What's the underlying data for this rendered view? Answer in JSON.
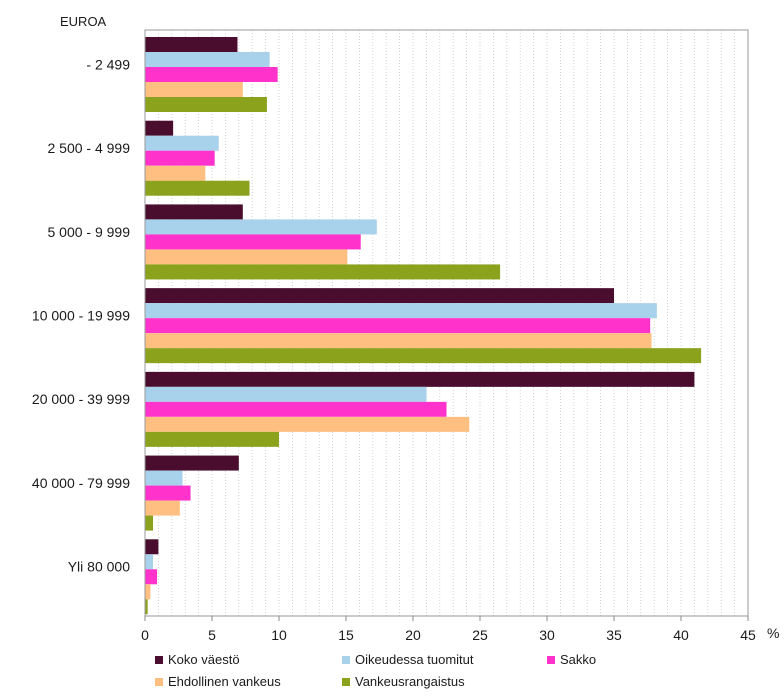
{
  "chart_data": {
    "type": "bar",
    "orientation": "horizontal",
    "title": "",
    "unit_label": "EUROA",
    "axis_unit": "%",
    "categories": [
      "- 2 499",
      "2 500 - 4 999",
      "5 000 - 9 999",
      "10 000 - 19 999",
      "20 000 - 39 999",
      "40 000 - 79 999",
      "Yli 80 000"
    ],
    "series": [
      {
        "name": "Koko väestö",
        "color": "#4a0d2e",
        "values": [
          6.9,
          2.1,
          7.3,
          35.0,
          41.0,
          7.0,
          1.0
        ]
      },
      {
        "name": "Oikeudessa tuomitut",
        "color": "#a8d1ec",
        "values": [
          9.3,
          5.5,
          17.3,
          38.2,
          21.0,
          2.8,
          0.6
        ]
      },
      {
        "name": "Sakko",
        "color": "#ff33cc",
        "values": [
          9.9,
          5.2,
          16.1,
          37.7,
          22.5,
          3.4,
          0.9
        ]
      },
      {
        "name": "Ehdollinen vankeus",
        "color": "#ffbf80",
        "values": [
          7.3,
          4.5,
          15.1,
          37.8,
          24.2,
          2.6,
          0.4
        ]
      },
      {
        "name": "Vankeusrangaistus",
        "color": "#8aa21c",
        "values": [
          9.1,
          7.8,
          26.5,
          41.5,
          10.0,
          0.6,
          0.2
        ]
      }
    ],
    "xlim": [
      0,
      45
    ],
    "xticks": [
      "0",
      "5",
      "10",
      "15",
      "20",
      "25",
      "30",
      "35",
      "40",
      "45"
    ],
    "grid": "vertical dotted at every unit",
    "legend_placement": "bottom"
  }
}
